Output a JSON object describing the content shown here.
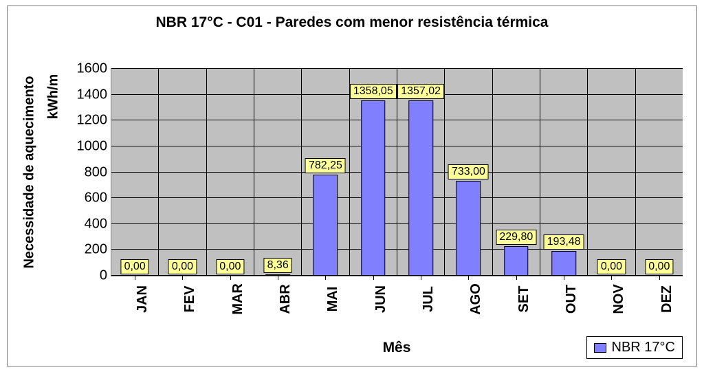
{
  "chart": {
    "type": "bar",
    "title": "NBR 17°C - C01 - Paredes com menor resistência térmica",
    "title_fontsize": 21,
    "title_fontweight": "bold",
    "xlabel": "Mês",
    "ylabel": "Necessidade de\naquecimento",
    "yunit": "kWh/m",
    "label_fontsize": 20,
    "label_fontweight": "bold",
    "background_color": "#ffffff",
    "plot_background_color": "#c0c0c0",
    "grid_color": "#000000",
    "border_color": "#7f7f7f",
    "categories": [
      "JAN",
      "FEV",
      "MAR",
      "ABR",
      "MAI",
      "JUN",
      "JUL",
      "AGO",
      "SET",
      "OUT",
      "NOV",
      "DEZ"
    ],
    "values": [
      0.0,
      0.0,
      0.0,
      8.36,
      782.25,
      1358.05,
      1357.02,
      733.0,
      229.8,
      193.48,
      0.0,
      0.0
    ],
    "value_labels": [
      "0,00",
      "0,00",
      "0,00",
      "8,36",
      "782,25",
      "1358,05",
      "1357,02",
      "733,00",
      "229,80",
      "193,48",
      "0,00",
      "0,00"
    ],
    "bar_color": "#8080ff",
    "bar_border_color": "#000000",
    "bar_width": 0.52,
    "ylim": [
      0,
      1600
    ],
    "ytick_step": 200,
    "yticks": [
      0,
      200,
      400,
      600,
      800,
      1000,
      1200,
      1400,
      1600
    ],
    "x_tick_rotation": -90,
    "x_tick_fontsize": 20,
    "x_tick_fontweight": "bold",
    "y_tick_fontsize": 20,
    "data_label_bg": "#ffff99",
    "data_label_border": "#000000",
    "data_label_fontsize": 16,
    "legend": {
      "label": "NBR 17°C",
      "swatch_color": "#8080ff",
      "border_color": "#000000",
      "fontsize": 20,
      "position": "bottom-right"
    }
  }
}
